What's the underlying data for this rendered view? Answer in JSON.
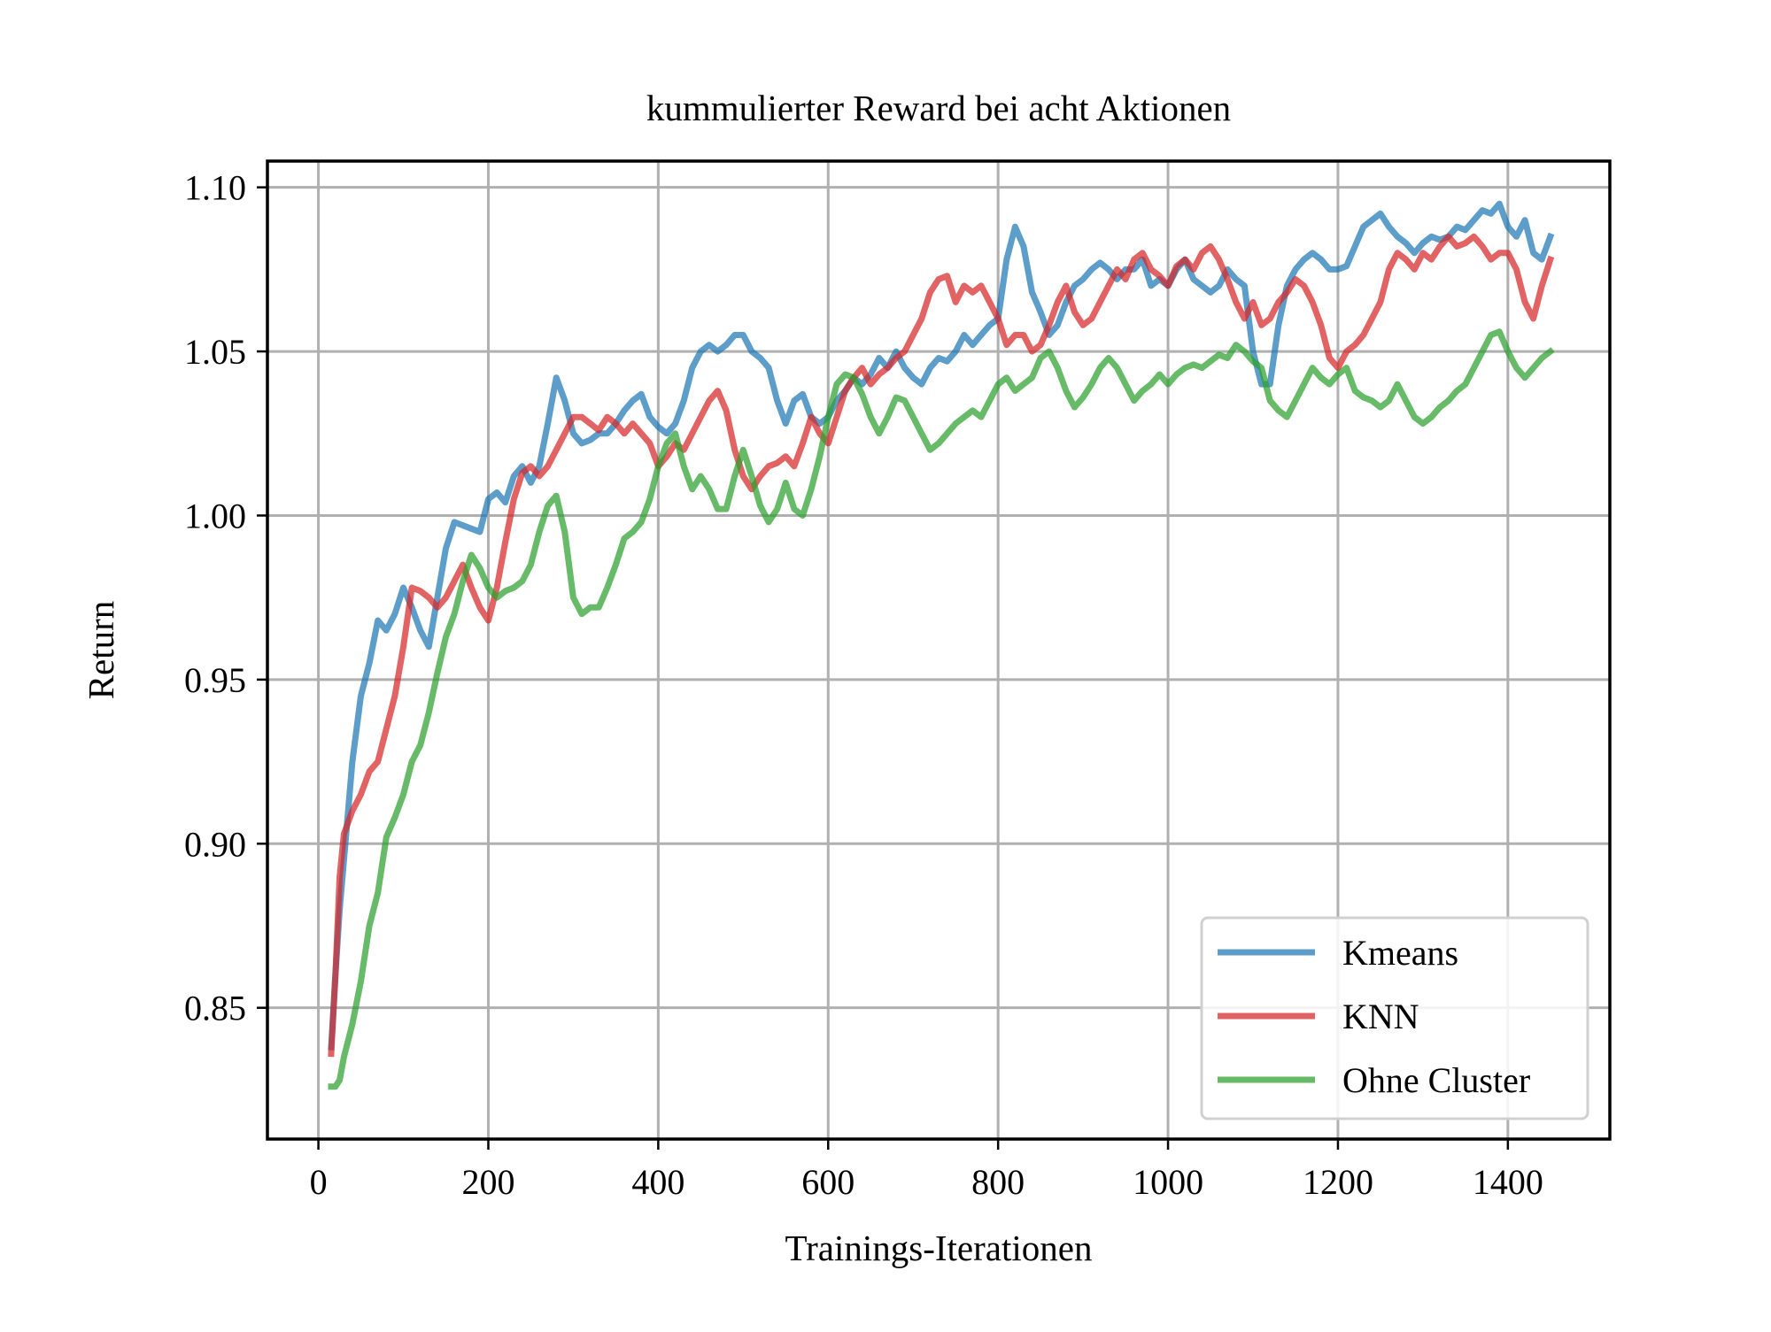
{
  "chart_data": {
    "type": "line",
    "title": "kummulierter Reward bei acht Aktionen",
    "xlabel": "Trainings-Iterationen",
    "ylabel": "Return",
    "xlim": [
      -60,
      1520
    ],
    "ylim": [
      0.81,
      1.108
    ],
    "xticks": [
      0,
      200,
      400,
      600,
      800,
      1000,
      1200,
      1400
    ],
    "yticks": [
      0.85,
      0.9,
      0.95,
      1.0,
      1.05,
      1.1
    ],
    "xtick_labels": [
      "0",
      "200",
      "400",
      "600",
      "800",
      "1000",
      "1200",
      "1400"
    ],
    "ytick_labels": [
      "0.85",
      "0.90",
      "0.95",
      "1.00",
      "1.05",
      "1.10"
    ],
    "grid": true,
    "legend_position": "lower-right",
    "series": [
      {
        "name": "Kmeans",
        "color": "#1f77b4",
        "x": [
          15,
          20,
          25,
          30,
          40,
          50,
          60,
          70,
          80,
          90,
          100,
          110,
          120,
          130,
          140,
          150,
          160,
          170,
          180,
          190,
          200,
          210,
          220,
          230,
          240,
          250,
          260,
          270,
          280,
          290,
          300,
          310,
          320,
          330,
          340,
          350,
          360,
          370,
          380,
          390,
          400,
          410,
          420,
          430,
          440,
          450,
          460,
          470,
          480,
          490,
          500,
          510,
          520,
          530,
          540,
          550,
          560,
          570,
          580,
          590,
          600,
          610,
          620,
          630,
          640,
          650,
          660,
          670,
          680,
          690,
          700,
          710,
          720,
          730,
          740,
          750,
          760,
          770,
          780,
          790,
          800,
          810,
          820,
          830,
          840,
          850,
          860,
          870,
          880,
          890,
          900,
          910,
          920,
          930,
          940,
          950,
          960,
          970,
          980,
          990,
          1000,
          1010,
          1020,
          1030,
          1040,
          1050,
          1060,
          1070,
          1080,
          1090,
          1100,
          1110,
          1120,
          1130,
          1140,
          1150,
          1160,
          1170,
          1180,
          1190,
          1200,
          1210,
          1220,
          1230,
          1240,
          1250,
          1260,
          1270,
          1280,
          1290,
          1300,
          1310,
          1320,
          1330,
          1340,
          1350,
          1360,
          1370,
          1380,
          1390,
          1400,
          1410,
          1420,
          1430,
          1440,
          1450
        ],
        "values": [
          0.838,
          0.86,
          0.88,
          0.895,
          0.925,
          0.945,
          0.955,
          0.968,
          0.965,
          0.97,
          0.978,
          0.972,
          0.965,
          0.96,
          0.975,
          0.99,
          0.998,
          0.997,
          0.996,
          0.995,
          1.005,
          1.007,
          1.004,
          1.012,
          1.015,
          1.01,
          1.015,
          1.028,
          1.042,
          1.035,
          1.025,
          1.022,
          1.023,
          1.025,
          1.025,
          1.028,
          1.032,
          1.035,
          1.037,
          1.03,
          1.027,
          1.025,
          1.028,
          1.035,
          1.045,
          1.05,
          1.052,
          1.05,
          1.052,
          1.055,
          1.055,
          1.05,
          1.048,
          1.045,
          1.035,
          1.028,
          1.035,
          1.037,
          1.03,
          1.028,
          1.03,
          1.035,
          1.038,
          1.042,
          1.04,
          1.043,
          1.048,
          1.045,
          1.05,
          1.045,
          1.042,
          1.04,
          1.045,
          1.048,
          1.047,
          1.05,
          1.055,
          1.052,
          1.055,
          1.058,
          1.06,
          1.078,
          1.088,
          1.082,
          1.068,
          1.062,
          1.055,
          1.058,
          1.065,
          1.07,
          1.072,
          1.075,
          1.077,
          1.075,
          1.072,
          1.075,
          1.075,
          1.078,
          1.07,
          1.072,
          1.07,
          1.075,
          1.078,
          1.072,
          1.07,
          1.068,
          1.07,
          1.075,
          1.072,
          1.07,
          1.05,
          1.04,
          1.04,
          1.058,
          1.07,
          1.075,
          1.078,
          1.08,
          1.078,
          1.075,
          1.075,
          1.076,
          1.082,
          1.088,
          1.09,
          1.092,
          1.088,
          1.085,
          1.083,
          1.08,
          1.083,
          1.085,
          1.084,
          1.085,
          1.088,
          1.087,
          1.09,
          1.093,
          1.092,
          1.095,
          1.088,
          1.085,
          1.09,
          1.08,
          1.078,
          1.085
        ]
      },
      {
        "name": "KNN",
        "color": "#d62728",
        "x": [
          15,
          20,
          25,
          30,
          40,
          50,
          60,
          70,
          80,
          90,
          100,
          110,
          120,
          130,
          140,
          150,
          160,
          170,
          180,
          190,
          200,
          210,
          220,
          230,
          240,
          250,
          260,
          270,
          280,
          290,
          300,
          310,
          320,
          330,
          340,
          350,
          360,
          370,
          380,
          390,
          400,
          410,
          420,
          430,
          440,
          450,
          460,
          470,
          480,
          490,
          500,
          510,
          520,
          530,
          540,
          550,
          560,
          570,
          580,
          590,
          600,
          610,
          620,
          630,
          640,
          650,
          660,
          670,
          680,
          690,
          700,
          710,
          720,
          730,
          740,
          750,
          760,
          770,
          780,
          790,
          800,
          810,
          820,
          830,
          840,
          850,
          860,
          870,
          880,
          890,
          900,
          910,
          920,
          930,
          940,
          950,
          960,
          970,
          980,
          990,
          1000,
          1010,
          1020,
          1030,
          1040,
          1050,
          1060,
          1070,
          1080,
          1090,
          1100,
          1110,
          1120,
          1130,
          1140,
          1150,
          1160,
          1170,
          1180,
          1190,
          1200,
          1210,
          1220,
          1230,
          1240,
          1250,
          1260,
          1270,
          1280,
          1290,
          1300,
          1310,
          1320,
          1330,
          1340,
          1350,
          1360,
          1370,
          1380,
          1390,
          1400,
          1410,
          1420,
          1430,
          1440,
          1450
        ],
        "values": [
          0.836,
          0.86,
          0.89,
          0.903,
          0.91,
          0.915,
          0.922,
          0.925,
          0.935,
          0.945,
          0.96,
          0.978,
          0.977,
          0.975,
          0.972,
          0.975,
          0.98,
          0.985,
          0.978,
          0.972,
          0.968,
          0.978,
          0.992,
          1.005,
          1.013,
          1.015,
          1.012,
          1.015,
          1.02,
          1.025,
          1.03,
          1.03,
          1.028,
          1.026,
          1.03,
          1.028,
          1.025,
          1.028,
          1.025,
          1.022,
          1.015,
          1.018,
          1.022,
          1.02,
          1.025,
          1.03,
          1.035,
          1.038,
          1.032,
          1.02,
          1.012,
          1.008,
          1.012,
          1.015,
          1.016,
          1.018,
          1.015,
          1.022,
          1.03,
          1.025,
          1.022,
          1.03,
          1.038,
          1.042,
          1.045,
          1.04,
          1.043,
          1.045,
          1.048,
          1.05,
          1.055,
          1.06,
          1.068,
          1.072,
          1.073,
          1.065,
          1.07,
          1.068,
          1.07,
          1.065,
          1.06,
          1.052,
          1.055,
          1.055,
          1.05,
          1.052,
          1.058,
          1.065,
          1.07,
          1.062,
          1.058,
          1.06,
          1.065,
          1.07,
          1.075,
          1.072,
          1.078,
          1.08,
          1.075,
          1.073,
          1.07,
          1.076,
          1.078,
          1.075,
          1.08,
          1.082,
          1.078,
          1.072,
          1.065,
          1.06,
          1.065,
          1.058,
          1.06,
          1.065,
          1.068,
          1.072,
          1.07,
          1.065,
          1.058,
          1.048,
          1.045,
          1.05,
          1.052,
          1.055,
          1.06,
          1.065,
          1.075,
          1.08,
          1.078,
          1.075,
          1.08,
          1.078,
          1.082,
          1.085,
          1.082,
          1.083,
          1.085,
          1.082,
          1.078,
          1.08,
          1.08,
          1.075,
          1.065,
          1.06,
          1.07,
          1.078
        ]
      },
      {
        "name": "Ohne Cluster",
        "color": "#2ca02c",
        "x": [
          15,
          20,
          25,
          30,
          40,
          50,
          60,
          70,
          80,
          90,
          100,
          110,
          120,
          130,
          140,
          150,
          160,
          170,
          180,
          190,
          200,
          210,
          220,
          230,
          240,
          250,
          260,
          270,
          280,
          290,
          300,
          310,
          320,
          330,
          340,
          350,
          360,
          370,
          380,
          390,
          400,
          410,
          420,
          430,
          440,
          450,
          460,
          470,
          480,
          490,
          500,
          510,
          520,
          530,
          540,
          550,
          560,
          570,
          580,
          590,
          600,
          610,
          620,
          630,
          640,
          650,
          660,
          670,
          680,
          690,
          700,
          710,
          720,
          730,
          740,
          750,
          760,
          770,
          780,
          790,
          800,
          810,
          820,
          830,
          840,
          850,
          860,
          870,
          880,
          890,
          900,
          910,
          920,
          930,
          940,
          950,
          960,
          970,
          980,
          990,
          1000,
          1010,
          1020,
          1030,
          1040,
          1050,
          1060,
          1070,
          1080,
          1090,
          1100,
          1110,
          1120,
          1130,
          1140,
          1150,
          1160,
          1170,
          1180,
          1190,
          1200,
          1210,
          1220,
          1230,
          1240,
          1250,
          1260,
          1270,
          1280,
          1290,
          1300,
          1310,
          1320,
          1330,
          1340,
          1350,
          1360,
          1370,
          1380,
          1390,
          1400,
          1410,
          1420,
          1430,
          1440,
          1450
        ],
        "values": [
          0.826,
          0.826,
          0.828,
          0.835,
          0.845,
          0.858,
          0.875,
          0.885,
          0.902,
          0.908,
          0.915,
          0.925,
          0.93,
          0.94,
          0.952,
          0.963,
          0.97,
          0.98,
          0.988,
          0.984,
          0.978,
          0.975,
          0.977,
          0.978,
          0.98,
          0.985,
          0.995,
          1.003,
          1.006,
          0.995,
          0.975,
          0.97,
          0.972,
          0.972,
          0.978,
          0.985,
          0.993,
          0.995,
          0.998,
          1.005,
          1.015,
          1.022,
          1.025,
          1.015,
          1.008,
          1.012,
          1.008,
          1.002,
          1.002,
          1.012,
          1.02,
          1.012,
          1.003,
          0.998,
          1.002,
          1.01,
          1.002,
          1.0,
          1.008,
          1.018,
          1.03,
          1.04,
          1.043,
          1.042,
          1.037,
          1.03,
          1.025,
          1.03,
          1.036,
          1.035,
          1.03,
          1.025,
          1.02,
          1.022,
          1.025,
          1.028,
          1.03,
          1.032,
          1.03,
          1.035,
          1.04,
          1.042,
          1.038,
          1.04,
          1.042,
          1.048,
          1.05,
          1.045,
          1.038,
          1.033,
          1.036,
          1.04,
          1.045,
          1.048,
          1.045,
          1.04,
          1.035,
          1.038,
          1.04,
          1.043,
          1.04,
          1.043,
          1.045,
          1.046,
          1.045,
          1.047,
          1.049,
          1.048,
          1.052,
          1.05,
          1.047,
          1.045,
          1.035,
          1.032,
          1.03,
          1.035,
          1.04,
          1.045,
          1.042,
          1.04,
          1.043,
          1.045,
          1.038,
          1.036,
          1.035,
          1.033,
          1.035,
          1.04,
          1.035,
          1.03,
          1.028,
          1.03,
          1.033,
          1.035,
          1.038,
          1.04,
          1.045,
          1.05,
          1.055,
          1.056,
          1.05,
          1.045,
          1.042,
          1.045,
          1.048,
          1.05
        ]
      }
    ]
  }
}
